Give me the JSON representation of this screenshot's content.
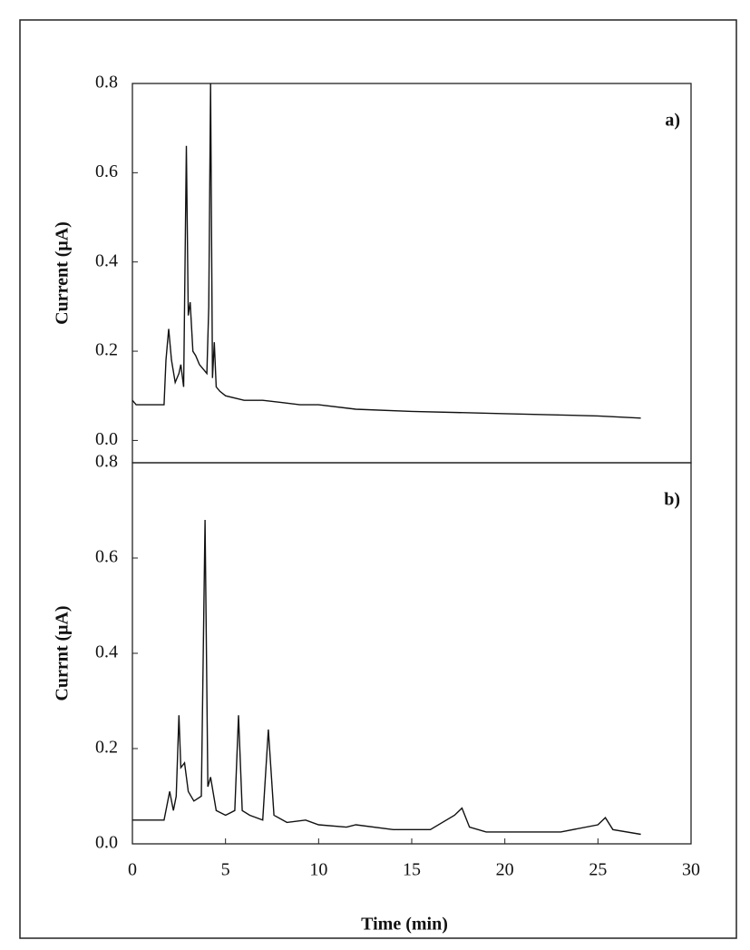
{
  "chart_data": [
    {
      "type": "line",
      "annotation": "a)",
      "ylabel": "Current (μA)",
      "xlim": [
        0,
        30
      ],
      "ylim": [
        -0.05,
        0.8
      ],
      "yticks": [
        {
          "value": 0,
          "label": "0.0"
        },
        {
          "value": 0.2,
          "label": "0.2"
        },
        {
          "value": 0.4,
          "label": "0.4"
        },
        {
          "value": 0.6,
          "label": "0.6"
        },
        {
          "value": 0.8,
          "label": "0.8"
        }
      ],
      "x": [
        0,
        0.2,
        1.7,
        1.8,
        1.95,
        2.1,
        2.3,
        2.5,
        2.6,
        2.75,
        2.9,
        3.0,
        3.1,
        3.25,
        3.4,
        3.6,
        3.8,
        4.0,
        4.1,
        4.2,
        4.3,
        4.4,
        4.5,
        4.7,
        5,
        6,
        7,
        8,
        9,
        10,
        12,
        15,
        20,
        25,
        27.3
      ],
      "series": [
        {
          "color": "#111111",
          "values": [
            0.09,
            0.08,
            0.08,
            0.18,
            0.25,
            0.18,
            0.13,
            0.15,
            0.17,
            0.12,
            0.66,
            0.28,
            0.31,
            0.2,
            0.19,
            0.17,
            0.16,
            0.15,
            0.3,
            0.8,
            0.14,
            0.22,
            0.12,
            0.11,
            0.1,
            0.09,
            0.09,
            0.085,
            0.08,
            0.08,
            0.07,
            0.065,
            0.06,
            0.055,
            0.05
          ]
        }
      ]
    },
    {
      "type": "line",
      "annotation": "b)",
      "ylabel": "Currnt (μA)",
      "xlabel": "Time (min)",
      "xlim": [
        0,
        30
      ],
      "ylim": [
        0,
        0.8
      ],
      "xticks": [
        0,
        5,
        10,
        15,
        20,
        25,
        30
      ],
      "yticks": [
        {
          "value": 0,
          "label": "0.0"
        },
        {
          "value": 0.2,
          "label": "0.2"
        },
        {
          "value": 0.4,
          "label": "0.4"
        },
        {
          "value": 0.6,
          "label": "0.6"
        },
        {
          "value": 0.8,
          "label": "0.8"
        }
      ],
      "x": [
        0,
        1.7,
        2.0,
        2.2,
        2.35,
        2.5,
        2.6,
        2.8,
        3.0,
        3.3,
        3.7,
        3.9,
        4.05,
        4.2,
        4.5,
        5.0,
        5.5,
        5.7,
        5.9,
        6.3,
        7.0,
        7.3,
        7.6,
        8.3,
        9.3,
        10,
        11.5,
        12,
        14,
        16,
        17.3,
        17.7,
        18.1,
        19,
        23,
        25,
        25.4,
        25.8,
        27.3
      ],
      "series": [
        {
          "color": "#111111",
          "values": [
            0.05,
            0.05,
            0.11,
            0.07,
            0.1,
            0.27,
            0.16,
            0.17,
            0.11,
            0.09,
            0.1,
            0.68,
            0.12,
            0.14,
            0.07,
            0.06,
            0.07,
            0.27,
            0.07,
            0.06,
            0.05,
            0.24,
            0.06,
            0.045,
            0.05,
            0.04,
            0.035,
            0.04,
            0.03,
            0.03,
            0.06,
            0.075,
            0.035,
            0.025,
            0.025,
            0.04,
            0.055,
            0.03,
            0.02
          ]
        }
      ]
    }
  ]
}
